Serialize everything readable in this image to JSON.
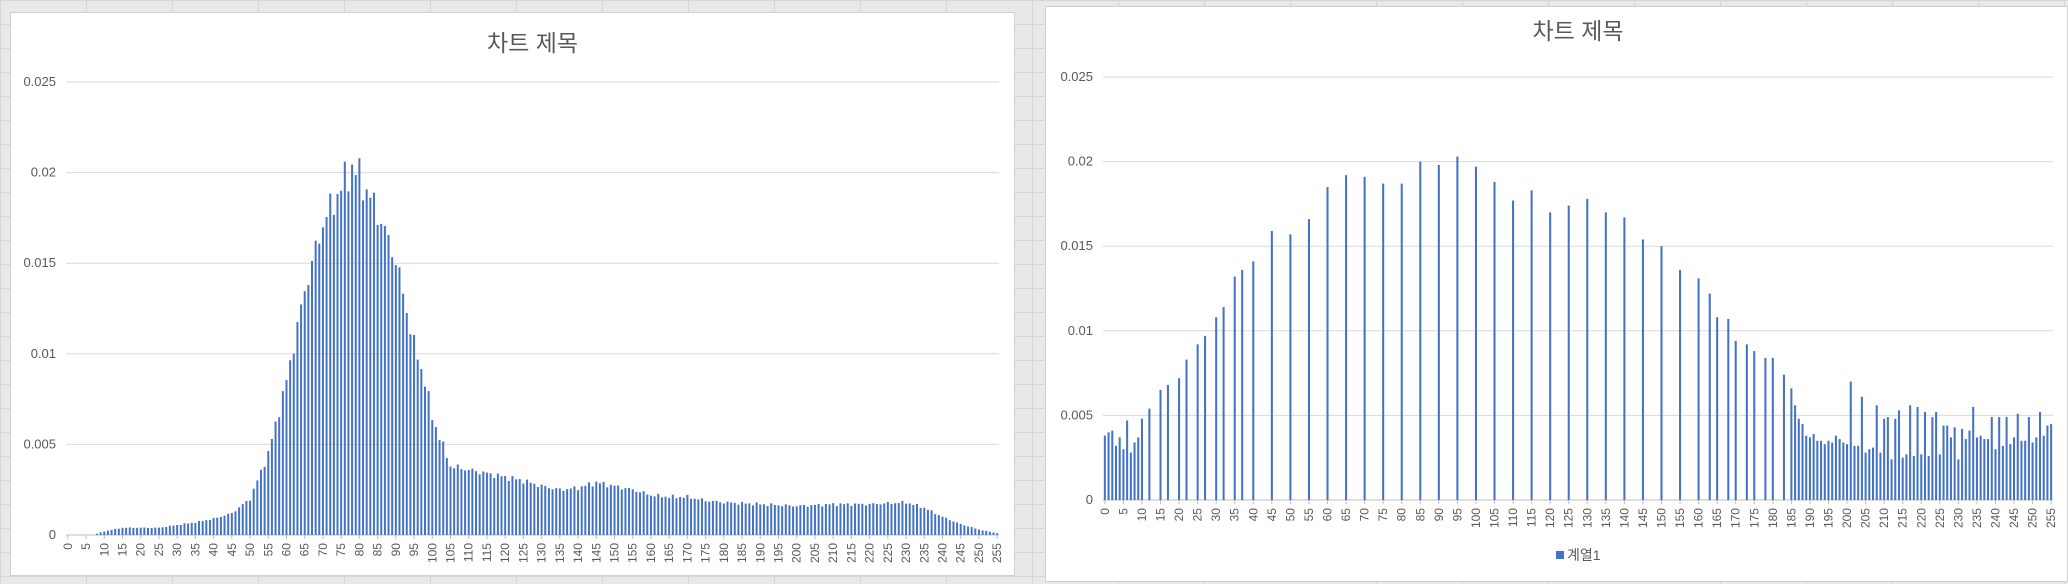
{
  "chart_data": [
    {
      "type": "bar",
      "title": "차트 제목",
      "series_color": "#4472c4",
      "xlabel": "",
      "ylabel": "",
      "ylim": [
        0,
        0.025
      ],
      "y_ticks": [
        "0",
        "0.005",
        "0.01",
        "0.015",
        "0.02",
        "0.025"
      ],
      "x_ticks": [
        "0",
        "5",
        "10",
        "15",
        "20",
        "25",
        "30",
        "35",
        "40",
        "45",
        "50",
        "55",
        "60",
        "65",
        "70",
        "75",
        "80",
        "85",
        "90",
        "95",
        "100",
        "105",
        "110",
        "115",
        "120",
        "125",
        "130",
        "135",
        "140",
        "145",
        "150",
        "155",
        "160",
        "165",
        "170",
        "175",
        "180",
        "185",
        "190",
        "195",
        "200",
        "205",
        "210",
        "215",
        "220",
        "225",
        "230",
        "235",
        "240",
        "245",
        "250",
        "255"
      ],
      "x_range": [
        0,
        255
      ],
      "grid": true,
      "control_points": [
        [
          0,
          0
        ],
        [
          7,
          0
        ],
        [
          10,
          0.0002
        ],
        [
          15,
          0.0004
        ],
        [
          25,
          0.0004
        ],
        [
          35,
          0.0007
        ],
        [
          40,
          0.0009
        ],
        [
          45,
          0.0012
        ],
        [
          50,
          0.002
        ],
        [
          55,
          0.0045
        ],
        [
          60,
          0.0085
        ],
        [
          65,
          0.0135
        ],
        [
          70,
          0.0172
        ],
        [
          75,
          0.0192
        ],
        [
          78,
          0.0203
        ],
        [
          80,
          0.0198
        ],
        [
          85,
          0.0178
        ],
        [
          90,
          0.0152
        ],
        [
          95,
          0.0105
        ],
        [
          98,
          0.0085
        ],
        [
          100,
          0.0065
        ],
        [
          105,
          0.0038
        ],
        [
          110,
          0.0036
        ],
        [
          115,
          0.0034
        ],
        [
          120,
          0.0032
        ],
        [
          125,
          0.003
        ],
        [
          130,
          0.0027
        ],
        [
          135,
          0.0025
        ],
        [
          140,
          0.0026
        ],
        [
          145,
          0.0029
        ],
        [
          150,
          0.0027
        ],
        [
          155,
          0.0025
        ],
        [
          160,
          0.0022
        ],
        [
          165,
          0.0021
        ],
        [
          170,
          0.0021
        ],
        [
          175,
          0.0019
        ],
        [
          180,
          0.0018
        ],
        [
          190,
          0.0017
        ],
        [
          200,
          0.0016
        ],
        [
          210,
          0.0017
        ],
        [
          220,
          0.0017
        ],
        [
          230,
          0.0018
        ],
        [
          235,
          0.0015
        ],
        [
          240,
          0.001
        ],
        [
          245,
          0.0006
        ],
        [
          250,
          0.0003
        ],
        [
          255,
          0.0001
        ]
      ],
      "ripple": 0.06
    },
    {
      "type": "bar",
      "title": "차트 제목",
      "series_color": "#4472c4",
      "xlabel": "",
      "ylabel": "",
      "ylim": [
        0,
        0.025
      ],
      "y_ticks": [
        "0",
        "0.005",
        "0.01",
        "0.015",
        "0.02",
        "0.025"
      ],
      "x_ticks": [
        "0",
        "5",
        "10",
        "15",
        "20",
        "25",
        "30",
        "35",
        "40",
        "45",
        "50",
        "55",
        "60",
        "65",
        "70",
        "75",
        "80",
        "85",
        "90",
        "95",
        "100",
        "105",
        "110",
        "115",
        "120",
        "125",
        "130",
        "135",
        "140",
        "145",
        "150",
        "155",
        "160",
        "165",
        "170",
        "175",
        "180",
        "185",
        "190",
        "195",
        "200",
        "205",
        "210",
        "215",
        "220",
        "225",
        "230",
        "235",
        "240",
        "245",
        "250",
        "255"
      ],
      "x_range": [
        0,
        255
      ],
      "grid": true,
      "legend": {
        "position": "bottom",
        "series_name": "계열1"
      },
      "values_sparse": [
        [
          0,
          0.0038
        ],
        [
          1,
          0.004
        ],
        [
          2,
          0.0041
        ],
        [
          3,
          0.0032
        ],
        [
          4,
          0.0037
        ],
        [
          5,
          0.003
        ],
        [
          6,
          0.0047
        ],
        [
          7,
          0.0028
        ],
        [
          8,
          0.0034
        ],
        [
          9,
          0.0037
        ],
        [
          10,
          0.0048
        ],
        [
          12,
          0.0054
        ],
        [
          15,
          0.0065
        ],
        [
          17,
          0.0068
        ],
        [
          20,
          0.0072
        ],
        [
          22,
          0.0083
        ],
        [
          25,
          0.0092
        ],
        [
          27,
          0.0097
        ],
        [
          30,
          0.0108
        ],
        [
          32,
          0.0114
        ],
        [
          35,
          0.0132
        ],
        [
          37,
          0.0136
        ],
        [
          40,
          0.0141
        ],
        [
          45,
          0.0159
        ],
        [
          50,
          0.0157
        ],
        [
          55,
          0.0166
        ],
        [
          60,
          0.0185
        ],
        [
          65,
          0.0192
        ],
        [
          70,
          0.0191
        ],
        [
          75,
          0.0187
        ],
        [
          80,
          0.0187
        ],
        [
          85,
          0.02
        ],
        [
          90,
          0.0198
        ],
        [
          95,
          0.0203
        ],
        [
          100,
          0.0197
        ],
        [
          105,
          0.0188
        ],
        [
          110,
          0.0177
        ],
        [
          115,
          0.0183
        ],
        [
          120,
          0.017
        ],
        [
          125,
          0.0174
        ],
        [
          130,
          0.0178
        ],
        [
          135,
          0.017
        ],
        [
          140,
          0.0167
        ],
        [
          145,
          0.0154
        ],
        [
          150,
          0.015
        ],
        [
          155,
          0.0136
        ],
        [
          160,
          0.0131
        ],
        [
          163,
          0.0122
        ],
        [
          165,
          0.0108
        ],
        [
          168,
          0.0107
        ],
        [
          170,
          0.0094
        ],
        [
          173,
          0.0092
        ],
        [
          175,
          0.0088
        ],
        [
          178,
          0.0084
        ],
        [
          180,
          0.0084
        ],
        [
          183,
          0.0074
        ],
        [
          185,
          0.0066
        ],
        [
          186,
          0.0056
        ],
        [
          187,
          0.0048
        ],
        [
          188,
          0.0045
        ],
        [
          189,
          0.0038
        ],
        [
          190,
          0.0037
        ],
        [
          191,
          0.0039
        ],
        [
          192,
          0.0035
        ],
        [
          193,
          0.0035
        ],
        [
          194,
          0.0033
        ],
        [
          195,
          0.0035
        ],
        [
          196,
          0.0034
        ],
        [
          197,
          0.0038
        ],
        [
          198,
          0.0036
        ],
        [
          199,
          0.0034
        ],
        [
          200,
          0.0033
        ],
        [
          201,
          0.007
        ],
        [
          202,
          0.0032
        ],
        [
          203,
          0.0032
        ],
        [
          204,
          0.0061
        ],
        [
          205,
          0.0028
        ],
        [
          206,
          0.003
        ],
        [
          207,
          0.0031
        ],
        [
          208,
          0.0056
        ],
        [
          209,
          0.0028
        ],
        [
          210,
          0.0048
        ],
        [
          211,
          0.0049
        ],
        [
          212,
          0.0024
        ],
        [
          213,
          0.0048
        ],
        [
          214,
          0.0053
        ],
        [
          215,
          0.0025
        ],
        [
          216,
          0.0027
        ],
        [
          217,
          0.0056
        ],
        [
          218,
          0.0026
        ],
        [
          219,
          0.0055
        ],
        [
          220,
          0.0027
        ],
        [
          221,
          0.0052
        ],
        [
          222,
          0.0026
        ],
        [
          223,
          0.0049
        ],
        [
          224,
          0.0052
        ],
        [
          225,
          0.0027
        ],
        [
          226,
          0.0044
        ],
        [
          227,
          0.0044
        ],
        [
          228,
          0.0037
        ],
        [
          229,
          0.0043
        ],
        [
          230,
          0.0024
        ],
        [
          231,
          0.0042
        ],
        [
          232,
          0.0036
        ],
        [
          233,
          0.0041
        ],
        [
          234,
          0.0055
        ],
        [
          235,
          0.0037
        ],
        [
          236,
          0.0038
        ],
        [
          237,
          0.0036
        ],
        [
          238,
          0.0036
        ],
        [
          239,
          0.0049
        ],
        [
          240,
          0.003
        ],
        [
          241,
          0.0049
        ],
        [
          242,
          0.0032
        ],
        [
          243,
          0.0049
        ],
        [
          244,
          0.0033
        ],
        [
          245,
          0.0037
        ],
        [
          246,
          0.0051
        ],
        [
          247,
          0.0035
        ],
        [
          248,
          0.0035
        ],
        [
          249,
          0.0049
        ],
        [
          250,
          0.0034
        ],
        [
          251,
          0.0037
        ],
        [
          252,
          0.0052
        ],
        [
          253,
          0.0038
        ],
        [
          254,
          0.0044
        ],
        [
          255,
          0.0045
        ]
      ]
    }
  ]
}
